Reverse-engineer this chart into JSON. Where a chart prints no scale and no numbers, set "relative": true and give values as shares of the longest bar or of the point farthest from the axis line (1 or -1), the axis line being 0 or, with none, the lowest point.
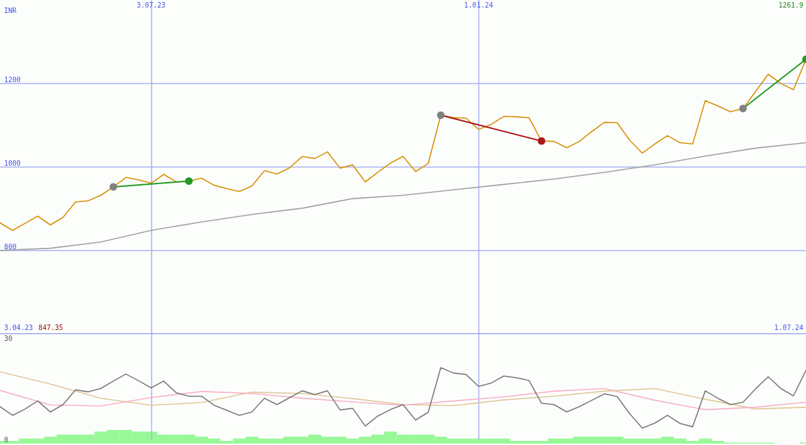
{
  "chart_data": [
    {
      "type": "line",
      "ylabel": "INR",
      "annotations": [
        "3.04.23",
        "847.35",
        "1.07.24",
        "1261.9"
      ],
      "x": [
        "2023-04-10",
        "2023-04-17",
        "2023-04-24",
        "2023-05-01",
        "2023-05-08",
        "2023-05-15",
        "2023-05-22",
        "2023-05-29",
        "2023-06-05",
        "2023-06-12",
        "2023-06-19",
        "2023-06-26",
        "2023-07-03",
        "2023-07-10",
        "2023-07-17",
        "2023-07-24",
        "2023-07-31",
        "2023-08-07",
        "2023-08-14",
        "2023-08-21",
        "2023-08-28",
        "2023-09-04",
        "2023-09-11",
        "2023-09-18",
        "2023-09-25",
        "2023-10-02",
        "2023-10-09",
        "2023-10-16",
        "2023-10-23",
        "2023-10-30",
        "2023-11-06",
        "2023-11-13",
        "2023-11-20",
        "2023-11-27",
        "2023-12-04",
        "2023-12-11",
        "2023-12-18",
        "2023-12-25",
        "2024-01-01",
        "2024-01-08",
        "2024-01-15",
        "2024-01-22",
        "2024-01-29",
        "2024-02-05",
        "2024-02-12",
        "2024-02-19",
        "2024-02-26",
        "2024-03-04",
        "2024-03-11",
        "2024-03-18",
        "2024-03-25",
        "2024-04-01",
        "2024-04-08",
        "2024-04-15",
        "2024-04-22",
        "2024-04-29",
        "2024-05-06",
        "2024-05-13",
        "2024-05-20",
        "2024-05-27",
        "2024-06-03",
        "2024-06-10",
        "2024-06-17",
        "2024-06-24",
        "2024-07-01"
      ],
      "series": [
        {
          "color": "#d98e04",
          "values": [
            866,
            848,
            865,
            882,
            861,
            879,
            916,
            919,
            932,
            952,
            975,
            969,
            961,
            982,
            964,
            966,
            973,
            956,
            948,
            941,
            954,
            991,
            983,
            998,
            1025,
            1020,
            1036,
            997,
            1005,
            964,
            987,
            1009,
            1025,
            989,
            1008,
            1124,
            1118,
            1117,
            1090,
            1102,
            1121,
            1120,
            1118,
            1062,
            1061,
            1046,
            1061,
            1085,
            1107,
            1106,
            1064,
            1033,
            1055,
            1075,
            1058,
            1055,
            1159,
            1146,
            1132,
            1140,
            1181,
            1222,
            1200,
            1185,
            1258
          ]
        },
        {
          "color": "#a0a0a0",
          "x": [
            "2023-04-10",
            "2023-05-08",
            "2023-06-05",
            "2023-07-03",
            "2023-07-31",
            "2023-08-28",
            "2023-09-25",
            "2023-10-23",
            "2023-11-20",
            "2023-12-18",
            "2024-01-15",
            "2024-02-12",
            "2024-03-11",
            "2024-04-08",
            "2024-05-06",
            "2024-06-03",
            "2024-07-01"
          ],
          "values": [
            800,
            805,
            820,
            848,
            868,
            886,
            901,
            924,
            932,
            945,
            958,
            971,
            987,
            1005,
            1026,
            1045,
            1058
          ]
        },
        {
          "color": "#229922",
          "x": [
            "2023-06-12",
            "2023-07-24"
          ],
          "values": [
            952,
            966
          ],
          "marker": "circle",
          "colors": [
            "#808080",
            "#229922"
          ]
        },
        {
          "color": "#aa1818",
          "x": [
            "2023-12-11",
            "2024-02-05"
          ],
          "values": [
            1124,
            1062
          ],
          "marker": "circle",
          "colors": [
            "#808080",
            "#aa1818"
          ]
        },
        {
          "color": "#229922",
          "x": [
            "2024-05-27",
            "2024-07-01"
          ],
          "values": [
            1140,
            1258
          ],
          "marker": "circle",
          "colors": [
            "#808080",
            "#229922"
          ]
        }
      ],
      "xlim": [
        "2023-04-10",
        "2024-07-01"
      ],
      "xticks": [
        {
          "value": "2023-07-03",
          "label": "3.07.23"
        },
        {
          "value": "2024-01-01",
          "label": "1.01.24"
        }
      ],
      "ylim": [
        601,
        1400
      ],
      "yticks": [
        800,
        1000,
        1200
      ],
      "grid": true,
      "marker": "none",
      "line_style": "solid"
    },
    {
      "type": "line",
      "x": [
        "2023-04-10",
        "2023-04-17",
        "2023-04-24",
        "2023-05-01",
        "2023-05-08",
        "2023-05-15",
        "2023-05-22",
        "2023-05-29",
        "2023-06-05",
        "2023-06-12",
        "2023-06-19",
        "2023-06-26",
        "2023-07-03",
        "2023-07-10",
        "2023-07-17",
        "2023-07-24",
        "2023-07-31",
        "2023-08-07",
        "2023-08-14",
        "2023-08-21",
        "2023-08-28",
        "2023-09-04",
        "2023-09-11",
        "2023-09-18",
        "2023-09-25",
        "2023-10-02",
        "2023-10-09",
        "2023-10-16",
        "2023-10-23",
        "2023-10-30",
        "2023-11-06",
        "2023-11-13",
        "2023-11-20",
        "2023-11-27",
        "2023-12-04",
        "2023-12-11",
        "2023-12-18",
        "2023-12-25",
        "2024-01-01",
        "2024-01-08",
        "2024-01-15",
        "2024-01-22",
        "2024-01-29",
        "2024-02-05",
        "2024-02-12",
        "2024-02-19",
        "2024-02-26",
        "2024-03-04",
        "2024-03-11",
        "2024-03-18",
        "2024-03-25",
        "2024-04-01",
        "2024-04-08",
        "2024-04-15",
        "2024-04-22",
        "2024-04-29",
        "2024-05-06",
        "2024-05-13",
        "2024-05-20",
        "2024-05-27",
        "2024-06-03",
        "2024-06-10",
        "2024-06-17",
        "2024-06-24",
        "2024-07-01"
      ],
      "series": [
        {
          "color": "#e0c898",
          "x": [
            "2023-04-10",
            "2023-05-08",
            "2023-06-05",
            "2023-07-03",
            "2023-07-31",
            "2023-08-28",
            "2023-09-25",
            "2023-10-23",
            "2023-11-20",
            "2023-12-18",
            "2024-01-15",
            "2024-02-12",
            "2024-03-11",
            "2024-04-08",
            "2024-05-06",
            "2024-06-03",
            "2024-07-01"
          ],
          "values": [
            20.2,
            16.5,
            12.3,
            10.2,
            11.0,
            14.1,
            13.7,
            12.2,
            10.4,
            10.1,
            11.8,
            12.9,
            14.4,
            15.2,
            12.0,
            9.1,
            9.6
          ]
        },
        {
          "color": "#f8b0c8",
          "x": [
            "2023-04-10",
            "2023-05-08",
            "2023-06-05",
            "2023-07-03",
            "2023-07-31",
            "2023-08-28",
            "2023-09-25",
            "2023-10-23",
            "2023-11-20",
            "2023-12-18",
            "2024-01-15",
            "2024-02-12",
            "2024-03-11",
            "2024-04-08",
            "2024-05-06",
            "2024-06-03",
            "2024-07-01"
          ],
          "values": [
            14.6,
            10.3,
            10.0,
            12.5,
            14.3,
            13.7,
            12.3,
            11.2,
            10.2,
            11.5,
            12.7,
            14.4,
            15.2,
            11.7,
            8.9,
            9.6,
            11.1
          ]
        },
        {
          "color": "#7a7a7a",
          "values": [
            9.8,
            7.2,
            9.1,
            11.5,
            8.2,
            10.4,
            14.8,
            14.2,
            15.2,
            17.4,
            19.5,
            17.5,
            15.4,
            17.4,
            13.9,
            12.9,
            12.9,
            10.2,
            8.7,
            7.2,
            8.2,
            12.3,
            10.4,
            12.5,
            14.5,
            13.4,
            14.5,
            8.8,
            9.3,
            4.0,
            7.0,
            8.9,
            10.4,
            5.8,
            8.1,
            21.4,
            19.8,
            19.4,
            15.8,
            16.8,
            18.9,
            18.4,
            17.6,
            10.8,
            10.4,
            8.2,
            9.8,
            11.7,
            13.6,
            12.8,
            7.7,
            3.4,
            4.9,
            7.2,
            4.8,
            3.8,
            14.5,
            12.3,
            10.4,
            11.1,
            15.1,
            18.7,
            15.2,
            13.0,
            20.6
          ]
        }
      ],
      "xlim": [
        "2023-04-10",
        "2024-07-01"
      ],
      "xticks": [
        {
          "value": "2023-07-03",
          "label": null
        },
        {
          "value": "2024-01-01",
          "label": null
        }
      ],
      "ylim": [
        0,
        31.6
      ],
      "yticks": [
        0,
        30
      ],
      "grid": "x",
      "marker": "none",
      "line_style": "solid",
      "tick_labels": "y"
    },
    {
      "type": "bar",
      "relative": true,
      "color": "#98f898",
      "x": [
        "2023-04-10",
        "2023-04-17",
        "2023-04-24",
        "2023-05-01",
        "2023-05-08",
        "2023-05-15",
        "2023-05-22",
        "2023-05-29",
        "2023-06-05",
        "2023-06-12",
        "2023-06-19",
        "2023-06-26",
        "2023-07-03",
        "2023-07-10",
        "2023-07-17",
        "2023-07-24",
        "2023-07-31",
        "2023-08-07",
        "2023-08-14",
        "2023-08-21",
        "2023-08-28",
        "2023-09-04",
        "2023-09-11",
        "2023-09-18",
        "2023-09-25",
        "2023-10-02",
        "2023-10-09",
        "2023-10-16",
        "2023-10-23",
        "2023-10-30",
        "2023-11-06",
        "2023-11-13",
        "2023-11-20",
        "2023-11-27",
        "2023-12-04",
        "2023-12-11",
        "2023-12-18",
        "2023-12-25",
        "2024-01-01",
        "2024-01-08",
        "2024-01-15",
        "2024-01-22",
        "2024-01-29",
        "2024-02-05",
        "2024-02-12",
        "2024-02-19",
        "2024-02-26",
        "2024-03-04",
        "2024-03-11",
        "2024-03-18",
        "2024-03-25",
        "2024-04-01",
        "2024-04-08",
        "2024-04-15",
        "2024-04-22",
        "2024-04-29",
        "2024-05-06",
        "2024-05-13",
        "2024-05-20",
        "2024-05-27",
        "2024-06-03",
        "2024-06-10",
        "2024-06-17",
        "2024-06-24",
        "2024-07-01"
      ],
      "values": [
        0.2,
        0.2,
        0.37,
        0.37,
        0.51,
        0.66,
        0.66,
        0.66,
        0.88,
        1,
        1,
        0.88,
        0.88,
        0.66,
        0.66,
        0.66,
        0.51,
        0.37,
        0.2,
        0.37,
        0.51,
        0.37,
        0.37,
        0.51,
        0.51,
        0.66,
        0.51,
        0.51,
        0.37,
        0.51,
        0.66,
        0.88,
        0.66,
        0.66,
        0.66,
        0.51,
        0.37,
        0.37,
        0.37,
        0.37,
        0.37,
        0.2,
        0.2,
        0.2,
        0.37,
        0.37,
        0.51,
        0.51,
        0.51,
        0.51,
        0.37,
        0.37,
        0.37,
        0.51,
        0.37,
        0.2,
        0.37,
        0.2,
        0.07,
        0.07,
        0.07,
        0.07,
        0,
        0,
        0.07
      ],
      "xlim": [
        "2023-04-10",
        "2024-07-01"
      ],
      "tick_labels": false
    }
  ]
}
